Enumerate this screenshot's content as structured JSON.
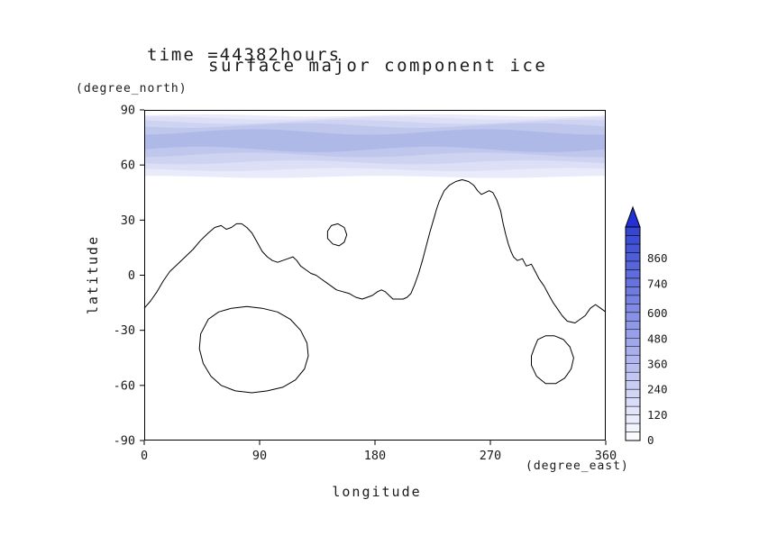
{
  "titles": {
    "line1": "time =44382hours",
    "line2": "surface major component ice"
  },
  "axes": {
    "x": {
      "label": "longitude",
      "unit": "(degree_east)",
      "ticks": [
        0,
        90,
        180,
        270,
        360
      ],
      "range": [
        0,
        360
      ]
    },
    "y": {
      "label": "latitude",
      "unit": "(degree_north)",
      "ticks": [
        90,
        60,
        30,
        0,
        -30,
        -60,
        -90
      ],
      "range": [
        -90,
        90
      ]
    }
  },
  "colorbar": {
    "ticks": [
      0,
      120,
      240,
      360,
      480,
      600,
      740,
      860
    ],
    "scale_max": 1010,
    "segments": 25,
    "low_color": "#fafaff",
    "high_color": "#3646d2",
    "over_color": "#2230d8"
  },
  "chart_data": {
    "type": "heatmap",
    "title": "surface major component ice",
    "subtitle": "time =44382hours",
    "xlabel": "longitude (degree_east)",
    "ylabel": "latitude (degree_north)",
    "xlim": [
      0,
      360
    ],
    "ylim": [
      -90,
      90
    ],
    "legend_position": "right-colorbar",
    "grid": false,
    "polar_cap_bands": [
      {
        "level": 60,
        "color": "#eaebfa",
        "lat_min": 53.5,
        "lat_max": 87.0,
        "amp": 0.6,
        "phase": 0.0
      },
      {
        "level": 180,
        "color": "#dcdff6",
        "lat_min": 57.5,
        "lat_max": 85.5,
        "amp": 0.9,
        "phase": 1.1
      },
      {
        "level": 300,
        "color": "#ced3f1",
        "lat_min": 61.5,
        "lat_max": 83.5,
        "amp": 1.1,
        "phase": 2.3
      },
      {
        "level": 420,
        "color": "#bfc7ec",
        "lat_min": 65.5,
        "lat_max": 81.5,
        "amp": 1.3,
        "phase": 3.6
      },
      {
        "level": 540,
        "color": "#aeb9e8",
        "lat_min": 68.5,
        "lat_max": 78.0,
        "amp": 1.5,
        "phase": 4.9
      }
    ],
    "contours": [
      {
        "name": "zero-contour-main",
        "closed": false,
        "points": [
          [
            0,
            -18
          ],
          [
            5,
            -14
          ],
          [
            10,
            -9
          ],
          [
            15,
            -3
          ],
          [
            20,
            2
          ],
          [
            26,
            6
          ],
          [
            32,
            10
          ],
          [
            38,
            14
          ],
          [
            44,
            19
          ],
          [
            50,
            23
          ],
          [
            55,
            26
          ],
          [
            60,
            27
          ],
          [
            64,
            25
          ],
          [
            68,
            26
          ],
          [
            72,
            28
          ],
          [
            76,
            28
          ],
          [
            80,
            26
          ],
          [
            84,
            23
          ],
          [
            88,
            18
          ],
          [
            92,
            13
          ],
          [
            96,
            10
          ],
          [
            100,
            8
          ],
          [
            104,
            7
          ],
          [
            108,
            8
          ],
          [
            112,
            9
          ],
          [
            116,
            10
          ],
          [
            119,
            8
          ],
          [
            122,
            5
          ],
          [
            126,
            3
          ],
          [
            130,
            1
          ],
          [
            134,
            0
          ],
          [
            138,
            -2
          ],
          [
            142,
            -4
          ],
          [
            146,
            -6
          ],
          [
            150,
            -8
          ],
          [
            155,
            -9
          ],
          [
            160,
            -10
          ],
          [
            165,
            -12
          ],
          [
            170,
            -13
          ],
          [
            174,
            -12
          ],
          [
            178,
            -11
          ],
          [
            182,
            -9
          ],
          [
            185,
            -8
          ],
          [
            188,
            -9
          ],
          [
            191,
            -11
          ],
          [
            194,
            -13
          ],
          [
            198,
            -13
          ],
          [
            202,
            -13
          ],
          [
            205,
            -12
          ],
          [
            208,
            -10
          ],
          [
            211,
            -5
          ],
          [
            214,
            1
          ],
          [
            217,
            8
          ],
          [
            220,
            16
          ],
          [
            223,
            24
          ],
          [
            226,
            31
          ],
          [
            228,
            36
          ],
          [
            230,
            40
          ],
          [
            234,
            46
          ],
          [
            238,
            49
          ],
          [
            243,
            51
          ],
          [
            248,
            52
          ],
          [
            253,
            51
          ],
          [
            257,
            49
          ],
          [
            260,
            46
          ],
          [
            263,
            44
          ],
          [
            266,
            45
          ],
          [
            269,
            46
          ],
          [
            272,
            45
          ],
          [
            275,
            41
          ],
          [
            278,
            35
          ],
          [
            280,
            28
          ],
          [
            282,
            22
          ],
          [
            284,
            17
          ],
          [
            286,
            13
          ],
          [
            288,
            10
          ],
          [
            291,
            8
          ],
          [
            295,
            9
          ],
          [
            298,
            5
          ],
          [
            302,
            6
          ],
          [
            305,
            2
          ],
          [
            308,
            -2
          ],
          [
            312,
            -6
          ],
          [
            315,
            -10
          ],
          [
            319,
            -15
          ],
          [
            322,
            -18
          ],
          [
            326,
            -22
          ],
          [
            330,
            -25
          ],
          [
            336,
            -26
          ],
          [
            340,
            -24
          ],
          [
            344,
            -22
          ],
          [
            348,
            -18
          ],
          [
            352,
            -16
          ],
          [
            356,
            -18
          ],
          [
            360,
            -20
          ]
        ]
      },
      {
        "name": "small-island-contour",
        "closed": true,
        "points": [
          [
            143,
            20
          ],
          [
            147,
            17
          ],
          [
            152,
            16
          ],
          [
            156,
            18
          ],
          [
            158,
            22
          ],
          [
            156,
            26
          ],
          [
            151,
            28
          ],
          [
            146,
            27
          ],
          [
            143,
            24
          ]
        ]
      },
      {
        "name": "southwest-basin-contour",
        "closed": true,
        "points": [
          [
            44,
            -32
          ],
          [
            50,
            -24
          ],
          [
            58,
            -20
          ],
          [
            68,
            -18
          ],
          [
            80,
            -17
          ],
          [
            92,
            -18
          ],
          [
            104,
            -20
          ],
          [
            114,
            -24
          ],
          [
            122,
            -30
          ],
          [
            127,
            -37
          ],
          [
            128,
            -44
          ],
          [
            125,
            -51
          ],
          [
            118,
            -57
          ],
          [
            108,
            -61
          ],
          [
            96,
            -63
          ],
          [
            84,
            -64
          ],
          [
            71,
            -63
          ],
          [
            60,
            -60
          ],
          [
            52,
            -55
          ],
          [
            46,
            -48
          ],
          [
            43,
            -40
          ]
        ]
      },
      {
        "name": "southeast-basin-contour",
        "closed": true,
        "points": [
          [
            304,
            -40
          ],
          [
            307,
            -35
          ],
          [
            313,
            -33
          ],
          [
            320,
            -33
          ],
          [
            327,
            -35
          ],
          [
            332,
            -39
          ],
          [
            335,
            -45
          ],
          [
            333,
            -51
          ],
          [
            328,
            -56
          ],
          [
            321,
            -59
          ],
          [
            313,
            -59
          ],
          [
            306,
            -55
          ],
          [
            302,
            -49
          ],
          [
            302,
            -44
          ]
        ]
      }
    ]
  }
}
